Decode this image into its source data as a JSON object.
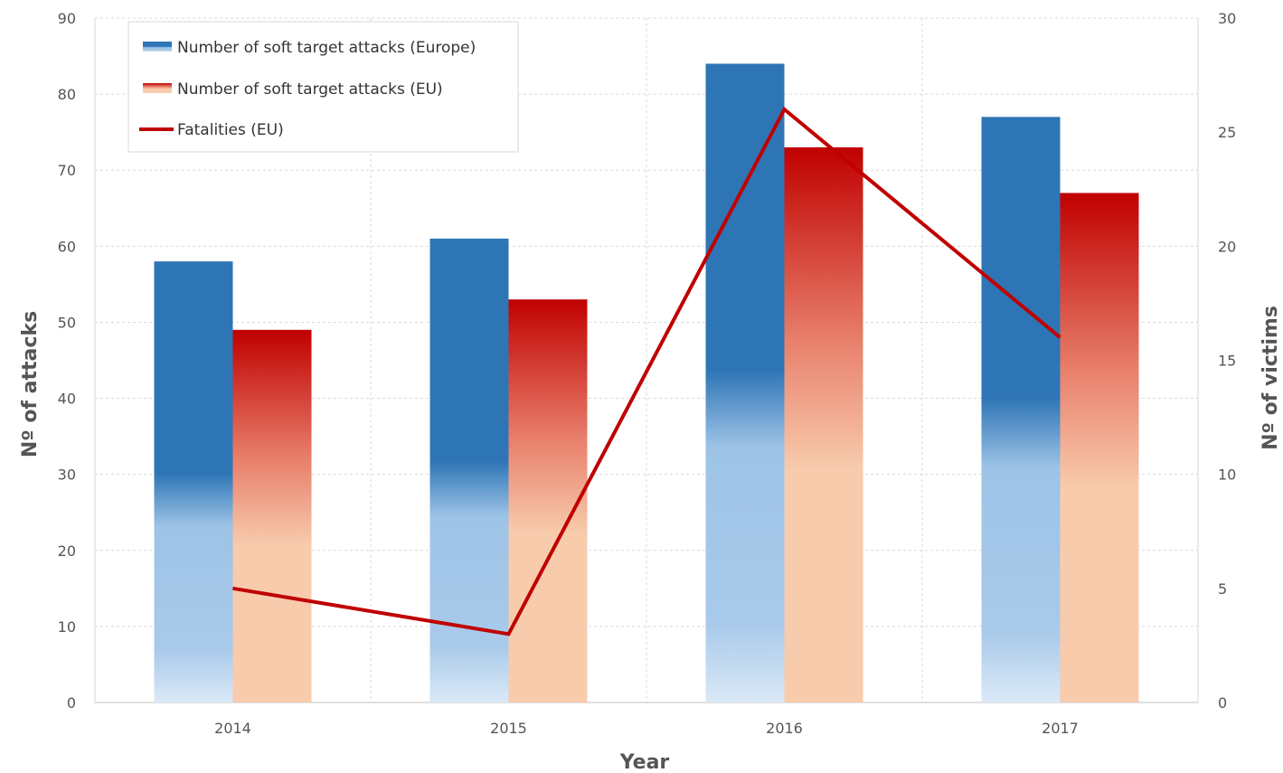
{
  "chart_data": {
    "type": "bar",
    "title": "",
    "categories": [
      "2014",
      "2015",
      "2016",
      "2017"
    ],
    "xlabel": "Year",
    "ylabel": "Nº of attacks",
    "y2label": "Nº of victims",
    "ylim": [
      0,
      90
    ],
    "y2lim": [
      0,
      30
    ],
    "yticks": [
      "0",
      "10",
      "20",
      "30",
      "40",
      "50",
      "60",
      "70",
      "80",
      "90"
    ],
    "y2ticks": [
      "0",
      "5",
      "10",
      "15",
      "20",
      "25",
      "30"
    ],
    "grid": true,
    "legend_position": "top-left",
    "series": [
      {
        "name": "Number of soft target attacks (Europe)",
        "type": "bar",
        "axis": "left",
        "values": [
          58,
          61,
          84,
          77
        ],
        "color": "#2e75b6",
        "color_light": "#9dc3e6"
      },
      {
        "name": "Number of soft target attacks (EU)",
        "type": "bar",
        "axis": "left",
        "values": [
          49,
          53,
          73,
          67
        ],
        "color": "#c00000",
        "color_light": "#f8cbad"
      },
      {
        "name": "Fatalities (EU)",
        "type": "line",
        "axis": "right",
        "values": [
          5,
          3,
          26,
          16
        ],
        "color": "#c00000"
      }
    ]
  }
}
